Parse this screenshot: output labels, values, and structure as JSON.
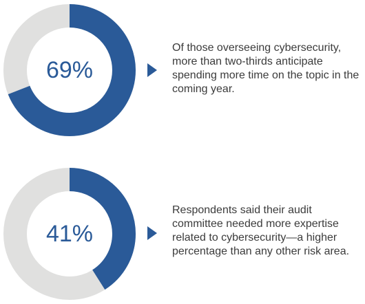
{
  "colors": {
    "accent": "#2a5a98",
    "track": "#e0e0df",
    "text": "#3b3b3b"
  },
  "chart_data": [
    {
      "type": "pie",
      "title": "",
      "values": [
        69,
        31
      ],
      "highlight_percent": 69,
      "label": "69%"
    },
    {
      "type": "pie",
      "title": "",
      "values": [
        41,
        59
      ],
      "highlight_percent": 41,
      "label": "41%"
    }
  ],
  "stats": [
    {
      "value_label": "69%",
      "caption": "Of those overseeing cybersecurity, more than two-thirds anticipate spending more time on the topic in the coming year."
    },
    {
      "value_label": "41%",
      "caption": "Respondents said their audit committee needed more expertise related to cybersecurity—a higher percentage than any other risk area."
    }
  ]
}
